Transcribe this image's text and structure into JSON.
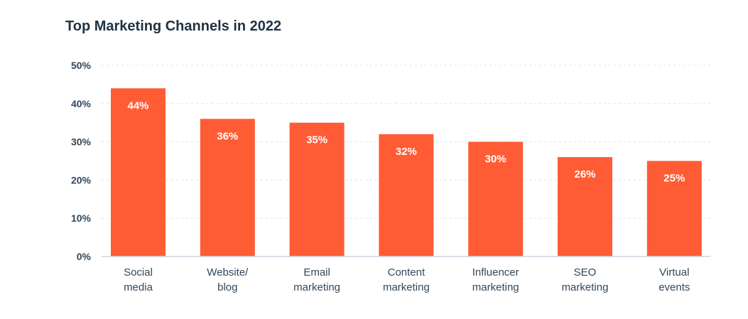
{
  "chart_data": {
    "type": "bar",
    "title": "Top Marketing Channels in 2022",
    "xlabel": "",
    "ylabel": "",
    "ylim": [
      0,
      50
    ],
    "yticks": [
      "0%",
      "10%",
      "20%",
      "30%",
      "40%",
      "50%"
    ],
    "ytick_values": [
      0,
      10,
      20,
      30,
      40,
      50
    ],
    "grid": true,
    "categories": [
      [
        "Social",
        "media"
      ],
      [
        "Website/",
        "blog"
      ],
      [
        "Email",
        "marketing"
      ],
      [
        "Content",
        "marketing"
      ],
      [
        "Influencer",
        "marketing"
      ],
      [
        "SEO",
        "marketing"
      ],
      [
        "Virtual",
        "events"
      ]
    ],
    "values": [
      44,
      36,
      35,
      32,
      30,
      26,
      25
    ],
    "data_labels": [
      "44%",
      "36%",
      "35%",
      "32%",
      "30%",
      "26%",
      "25%"
    ],
    "bar_color": "#FF5C35",
    "grid_color": "#DFE3EB",
    "axis_color": "#CBD6E2"
  }
}
